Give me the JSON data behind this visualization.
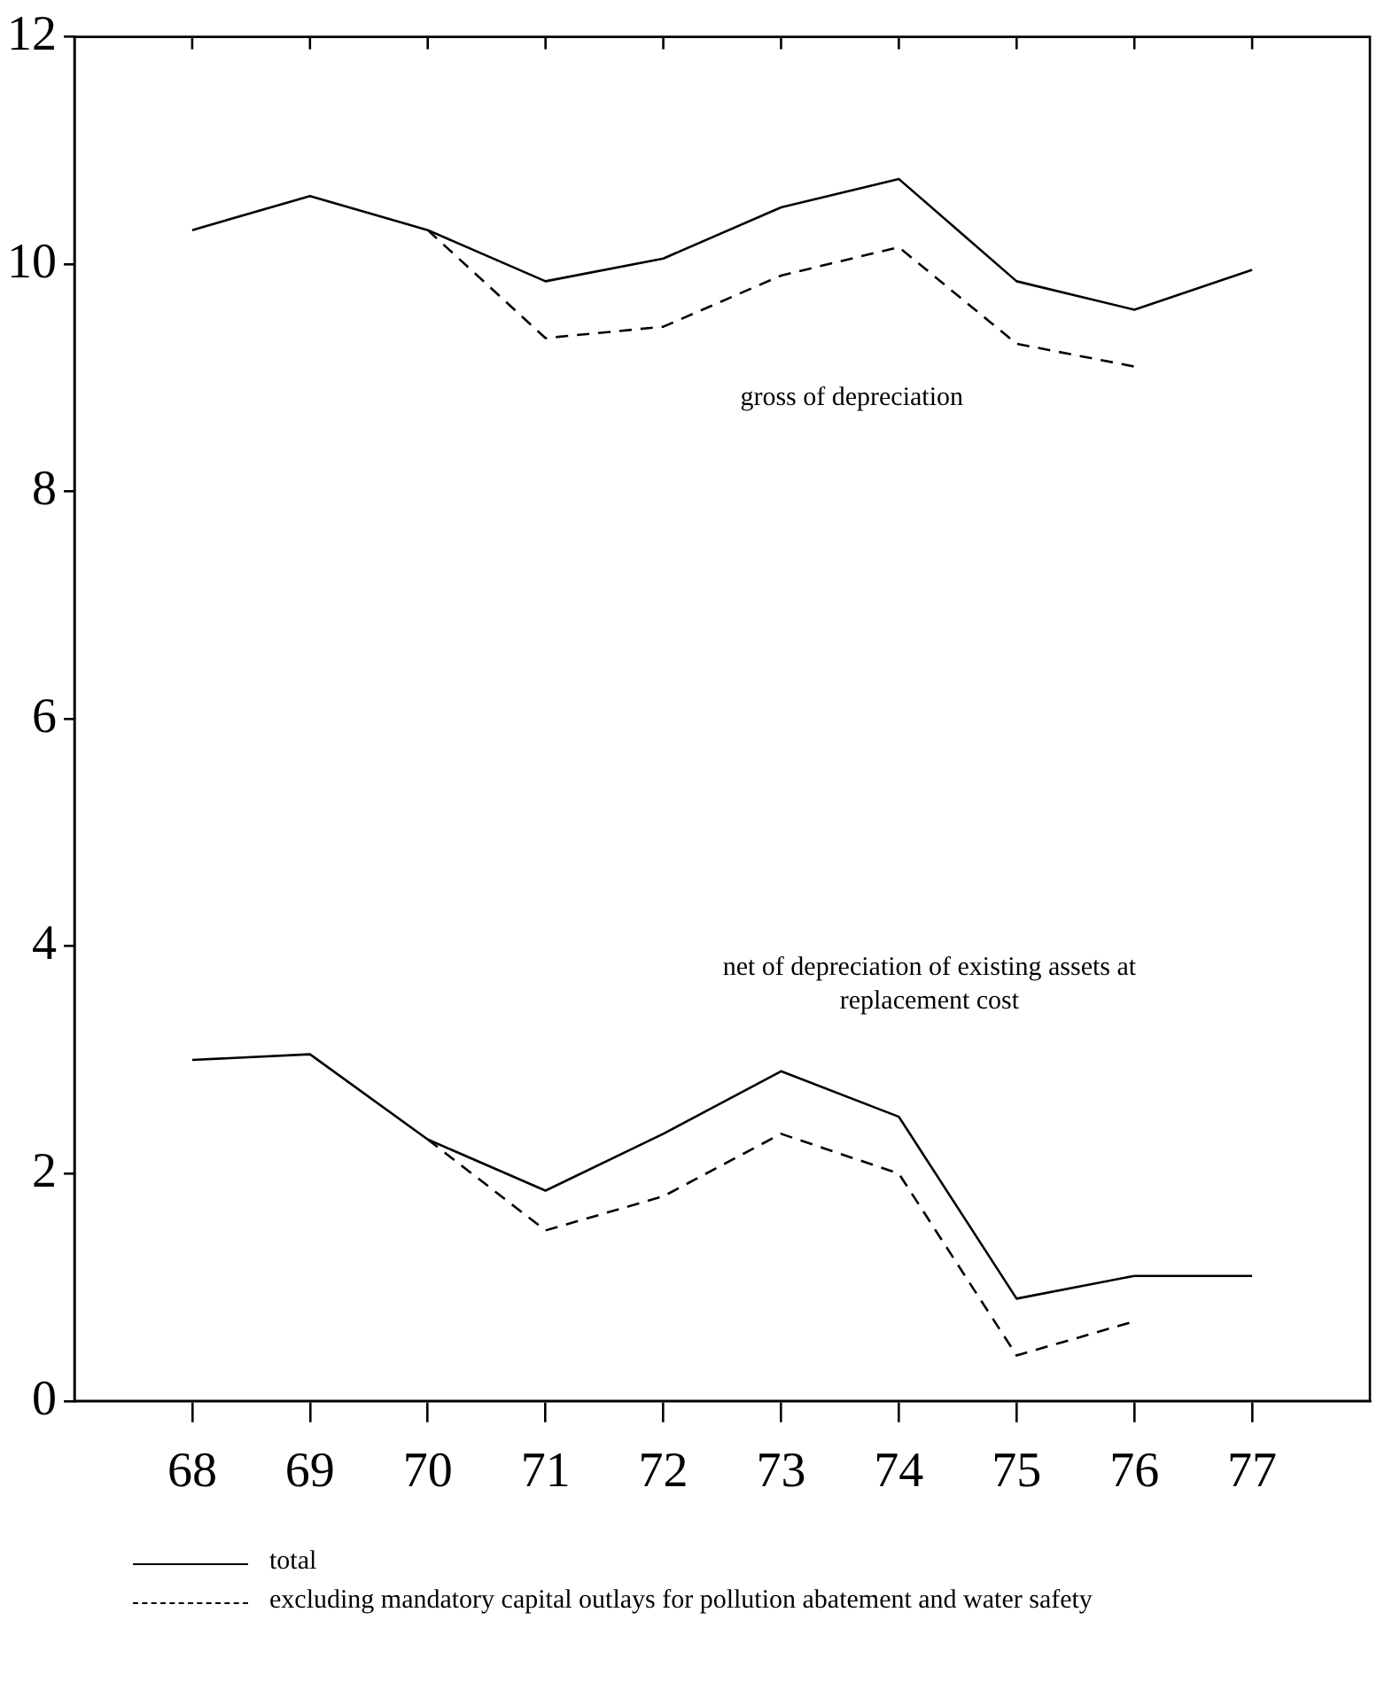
{
  "chart_data": {
    "type": "line",
    "x": [
      68,
      69,
      70,
      71,
      72,
      73,
      74,
      75,
      76,
      77
    ],
    "xlim": [
      67,
      78
    ],
    "xticks": [
      68,
      69,
      70,
      71,
      72,
      73,
      74,
      75,
      76,
      77
    ],
    "ylim": [
      0,
      12
    ],
    "yticks": [
      0,
      2,
      4,
      6,
      8,
      10,
      12
    ],
    "grid": false,
    "legend": "bottom",
    "marker": "none",
    "series": [
      {
        "name": "total",
        "color": "#000000",
        "line_style": "solid",
        "values": [
          10.3,
          10.6,
          10.3,
          9.85,
          10.05,
          10.5,
          10.75,
          9.85,
          9.6,
          9.95
        ]
      },
      {
        "name": "excluding mandatory capital outlays for pollution abatement and water safety",
        "color": "#000000",
        "line_style": "dashed",
        "values": [
          null,
          null,
          10.3,
          9.35,
          9.45,
          9.9,
          10.15,
          9.3,
          9.1,
          null
        ]
      },
      {
        "color": "#000000",
        "line_style": "solid",
        "values": [
          3.0,
          3.05,
          2.3,
          1.85,
          2.35,
          2.9,
          2.5,
          0.9,
          1.1,
          1.1
        ]
      },
      {
        "color": "#000000",
        "line_style": "dashed",
        "values": [
          null,
          null,
          2.3,
          1.5,
          1.8,
          2.35,
          2.0,
          0.4,
          0.7,
          null
        ]
      }
    ],
    "annotations": [
      "gross of depreciation",
      "net of depreciation of existing assets at replacement cost"
    ]
  }
}
